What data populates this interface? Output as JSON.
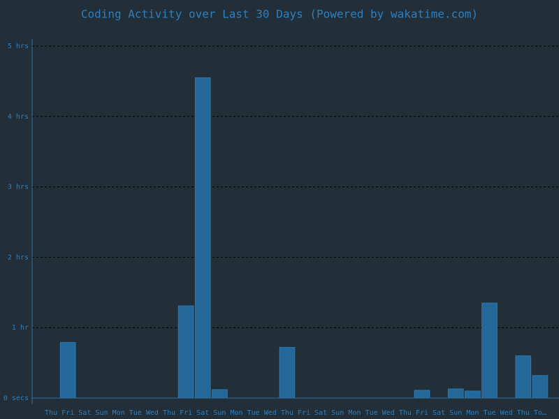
{
  "chart_data": {
    "type": "bar",
    "title": "Coding Activity over Last 30 Days (Powered by wakatime.com)",
    "categories": [
      "Thu",
      "Fri",
      "Sat",
      "Sun",
      "Mon",
      "Tue",
      "Wed",
      "Thu",
      "Fri",
      "Sat",
      "Sun",
      "Mon",
      "Tue",
      "Wed",
      "Thu",
      "Fri",
      "Sat",
      "Sun",
      "Mon",
      "Tue",
      "Wed",
      "Thu",
      "Fri",
      "Sat",
      "Sun",
      "Mon",
      "Tue",
      "Wed",
      "Thu",
      "To…"
    ],
    "values": [
      0,
      0.79,
      0,
      0,
      0,
      0,
      0,
      0,
      1.31,
      4.55,
      0.12,
      0,
      0,
      0,
      0.72,
      0,
      0,
      0,
      0,
      0,
      0,
      0,
      0.11,
      0,
      0.13,
      0.1,
      1.35,
      0,
      0.6,
      0.32
    ],
    "color": "#236899",
    "ylim": [
      0,
      5
    ],
    "yticks": [
      {
        "value": 0,
        "label": "0 secs"
      },
      {
        "value": 1,
        "label": "1 hr"
      },
      {
        "value": 2,
        "label": "2 hrs"
      },
      {
        "value": 3,
        "label": "3 hrs"
      },
      {
        "value": 4,
        "label": "4 hrs"
      },
      {
        "value": 5,
        "label": "5 hrs"
      }
    ],
    "grid": true
  }
}
